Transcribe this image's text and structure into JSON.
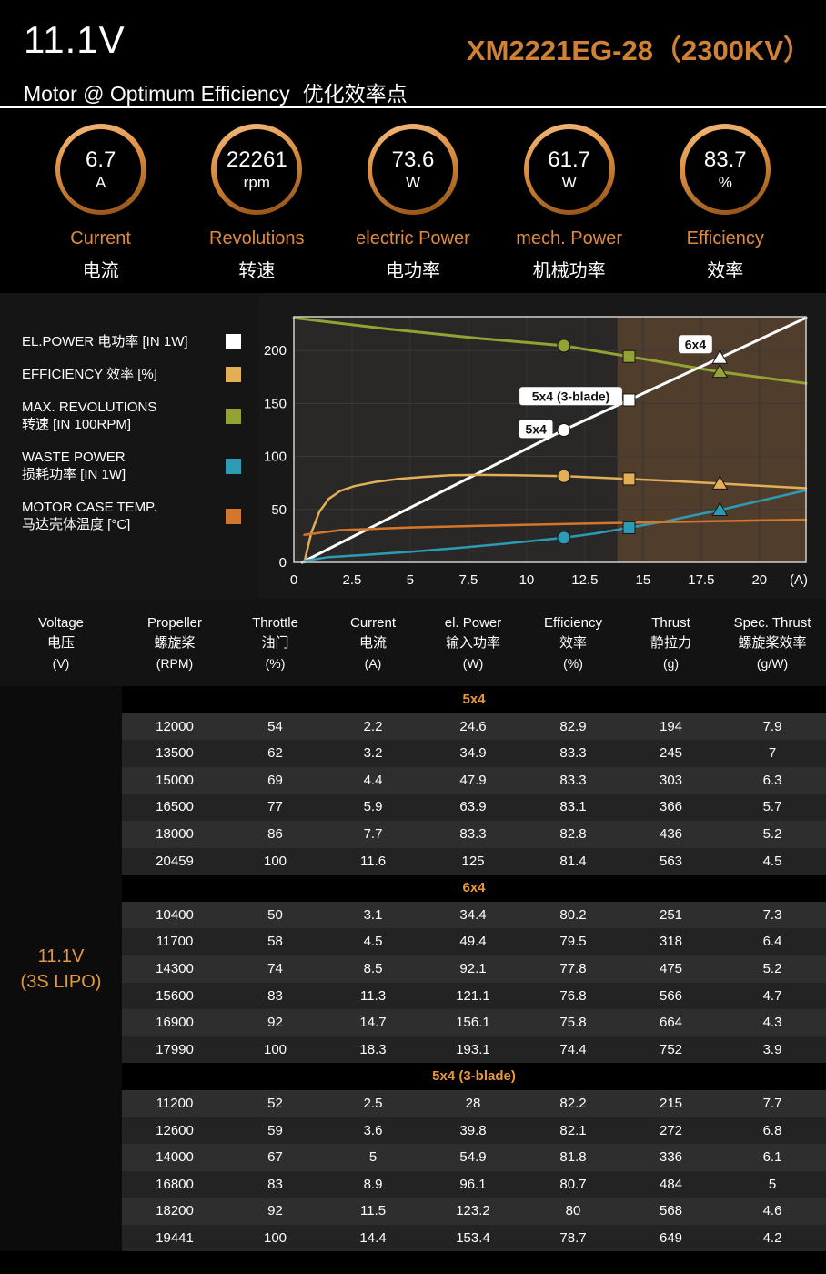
{
  "page": {
    "accent": "#e08b3c",
    "background": "#000000"
  },
  "header": {
    "voltage": "11.1V",
    "model": "XM2221EG-28（2300KV）",
    "subtitle_en": "Motor @ Optimum Efficiency",
    "subtitle_zh": "优化效率点",
    "gauges": [
      {
        "value": "6.7",
        "unit": "A",
        "label_en": "Current",
        "label_zh": "电流"
      },
      {
        "value": "22261",
        "unit": "rpm",
        "label_en": "Revolutions",
        "label_zh": "转速"
      },
      {
        "value": "73.6",
        "unit": "W",
        "label_en": "electric Power",
        "label_zh": "电功率"
      },
      {
        "value": "61.7",
        "unit": "W",
        "label_en": "mech. Power",
        "label_zh": "机械功率"
      },
      {
        "value": "83.7",
        "unit": "%",
        "label_en": "Efficiency",
        "label_zh": "效率"
      }
    ]
  },
  "legend": {
    "items": [
      {
        "lines": [
          "EL.POWER 电功率 [IN 1W]"
        ],
        "color": "#ffffff"
      },
      {
        "lines": [
          "EFFICIENCY 效率 [%]"
        ],
        "color": "#e2ae58"
      },
      {
        "lines": [
          "MAX. REVOLUTIONS",
          "转速 [IN 100RPM]"
        ],
        "color": "#93a233"
      },
      {
        "lines": [
          "WASTE POWER",
          "损耗功率 [IN 1W]"
        ],
        "color": "#2c9cb5"
      },
      {
        "lines": [
          "MOTOR CASE TEMP.",
          "马达壳体温度 [°C]"
        ],
        "color": "#d4762c"
      }
    ]
  },
  "chart_data": {
    "type": "line",
    "xlabel": "(A)",
    "xlim": [
      0,
      22
    ],
    "ylim": [
      0,
      232
    ],
    "x_ticks": [
      0,
      2.5,
      5,
      7.5,
      10,
      12.5,
      15,
      17.5,
      20
    ],
    "y_ticks": [
      0,
      50,
      100,
      150,
      200
    ],
    "plot_bg": "#2a2826",
    "overload_start": 13.9,
    "overload_color": "#503d2c",
    "marker_shapes": [
      "circle",
      "square",
      "triangle"
    ],
    "marker_props": [
      "5x4",
      "5x4 (3-blade)",
      "6x4"
    ],
    "series": [
      {
        "name": "max-revolutions",
        "color": "#93a233",
        "width": 3,
        "points": [
          [
            0,
            231
          ],
          [
            4,
            220.5
          ],
          [
            8,
            211.5
          ],
          [
            11.6,
            204.6
          ],
          [
            14.4,
            194.4
          ],
          [
            18.3,
            179.9
          ],
          [
            22,
            169
          ]
        ],
        "markers": [
          [
            11.6,
            204.6
          ],
          [
            14.4,
            194.4
          ],
          [
            18.3,
            179.9
          ]
        ]
      },
      {
        "name": "el-power",
        "color": "#ffffff",
        "width": 3,
        "points": [
          [
            0.35,
            0
          ],
          [
            11.6,
            125
          ],
          [
            14.4,
            153.4
          ],
          [
            18.3,
            193.1
          ],
          [
            22,
            231
          ]
        ],
        "markers": [
          [
            11.6,
            125
          ],
          [
            14.4,
            153.4
          ],
          [
            18.3,
            193.1
          ]
        ]
      },
      {
        "name": "efficiency",
        "color": "#e2ae58",
        "width": 2.5,
        "points": [
          [
            0.45,
            0
          ],
          [
            0.75,
            28
          ],
          [
            1.1,
            48
          ],
          [
            1.5,
            60
          ],
          [
            2,
            67.5
          ],
          [
            2.6,
            72
          ],
          [
            3.5,
            76
          ],
          [
            4.5,
            78.8
          ],
          [
            5.5,
            80.6
          ],
          [
            6.7,
            82.2
          ],
          [
            8,
            82.6
          ],
          [
            9.5,
            82.3
          ],
          [
            11.6,
            81.4
          ],
          [
            13,
            80.2
          ],
          [
            14.4,
            78.7
          ],
          [
            16,
            77.1
          ],
          [
            18.3,
            74.4
          ],
          [
            20,
            72.4
          ],
          [
            22,
            70
          ]
        ],
        "markers": [
          [
            11.6,
            81.4
          ],
          [
            14.4,
            78.7
          ],
          [
            18.3,
            74.4
          ]
        ]
      },
      {
        "name": "waste-power",
        "color": "#2c9cb5",
        "width": 2.5,
        "points": [
          [
            0.45,
            1.5
          ],
          [
            1.5,
            5
          ],
          [
            3,
            7
          ],
          [
            5,
            10
          ],
          [
            7,
            13.5
          ],
          [
            9,
            17.5
          ],
          [
            11.6,
            23.3
          ],
          [
            13,
            27.5
          ],
          [
            14.4,
            32.7
          ],
          [
            16,
            39
          ],
          [
            17.2,
            44.5
          ],
          [
            18.3,
            49.4
          ],
          [
            19.5,
            55.5
          ],
          [
            20.8,
            62
          ],
          [
            22,
            68
          ]
        ],
        "markers": [
          [
            11.6,
            23.3
          ],
          [
            14.4,
            32.7
          ],
          [
            18.3,
            49.4
          ]
        ]
      },
      {
        "name": "motor-case-temp",
        "color": "#d4762c",
        "width": 2.5,
        "points": [
          [
            0.45,
            26
          ],
          [
            2,
            30.5
          ],
          [
            5,
            33
          ],
          [
            8,
            34.5
          ],
          [
            11,
            36
          ],
          [
            14,
            37.3
          ],
          [
            17,
            38.5
          ],
          [
            20,
            39.6
          ],
          [
            22,
            40.3
          ]
        ],
        "markers": []
      }
    ],
    "annotations": [
      {
        "text": "6x4",
        "x": 17.25,
        "y": 206
      },
      {
        "text": "5x4 (3-blade)",
        "x": 11.9,
        "y": 157
      },
      {
        "text": "5x4",
        "x": 10.4,
        "y": 126
      }
    ]
  },
  "table": {
    "headers": [
      {
        "en": "Voltage",
        "zh": "电压",
        "unit": "(V)"
      },
      {
        "en": "Propeller",
        "zh": "螺旋桨",
        "unit": "(RPM)"
      },
      {
        "en": "Throttle",
        "zh": "油门",
        "unit": "(%)"
      },
      {
        "en": "Current",
        "zh": "电流",
        "unit": "(A)"
      },
      {
        "en": "el. Power",
        "zh": "输入功率",
        "unit": "(W)"
      },
      {
        "en": "Efficiency",
        "zh": "效率",
        "unit": "(%)"
      },
      {
        "en": "Thrust",
        "zh": "静拉力",
        "unit": "(g)"
      },
      {
        "en": "Spec. Thrust",
        "zh": "螺旋桨效率",
        "unit": "(g/W)"
      }
    ],
    "voltage_label": [
      "11.1V",
      "(3S LIPO)"
    ],
    "sections": [
      {
        "name": "5x4",
        "rows": [
          [
            "12000",
            "54",
            "2.2",
            "24.6",
            "82.9",
            "194",
            "7.9"
          ],
          [
            "13500",
            "62",
            "3.2",
            "34.9",
            "83.3",
            "245",
            "7"
          ],
          [
            "15000",
            "69",
            "4.4",
            "47.9",
            "83.3",
            "303",
            "6.3"
          ],
          [
            "16500",
            "77",
            "5.9",
            "63.9",
            "83.1",
            "366",
            "5.7"
          ],
          [
            "18000",
            "86",
            "7.7",
            "83.3",
            "82.8",
            "436",
            "5.2"
          ],
          [
            "20459",
            "100",
            "11.6",
            "125",
            "81.4",
            "563",
            "4.5"
          ]
        ]
      },
      {
        "name": "6x4",
        "rows": [
          [
            "10400",
            "50",
            "3.1",
            "34.4",
            "80.2",
            "251",
            "7.3"
          ],
          [
            "11700",
            "58",
            "4.5",
            "49.4",
            "79.5",
            "318",
            "6.4"
          ],
          [
            "14300",
            "74",
            "8.5",
            "92.1",
            "77.8",
            "475",
            "5.2"
          ],
          [
            "15600",
            "83",
            "11.3",
            "121.1",
            "76.8",
            "566",
            "4.7"
          ],
          [
            "16900",
            "92",
            "14.7",
            "156.1",
            "75.8",
            "664",
            "4.3"
          ],
          [
            "17990",
            "100",
            "18.3",
            "193.1",
            "74.4",
            "752",
            "3.9"
          ]
        ]
      },
      {
        "name": "5x4 (3-blade)",
        "rows": [
          [
            "11200",
            "52",
            "2.5",
            "28",
            "82.2",
            "215",
            "7.7"
          ],
          [
            "12600",
            "59",
            "3.6",
            "39.8",
            "82.1",
            "272",
            "6.8"
          ],
          [
            "14000",
            "67",
            "5",
            "54.9",
            "81.8",
            "336",
            "6.1"
          ],
          [
            "16800",
            "83",
            "8.9",
            "96.1",
            "80.7",
            "484",
            "5"
          ],
          [
            "18200",
            "92",
            "11.5",
            "123.2",
            "80",
            "568",
            "4.6"
          ],
          [
            "19441",
            "100",
            "14.4",
            "153.4",
            "78.7",
            "649",
            "4.2"
          ]
        ]
      }
    ]
  }
}
